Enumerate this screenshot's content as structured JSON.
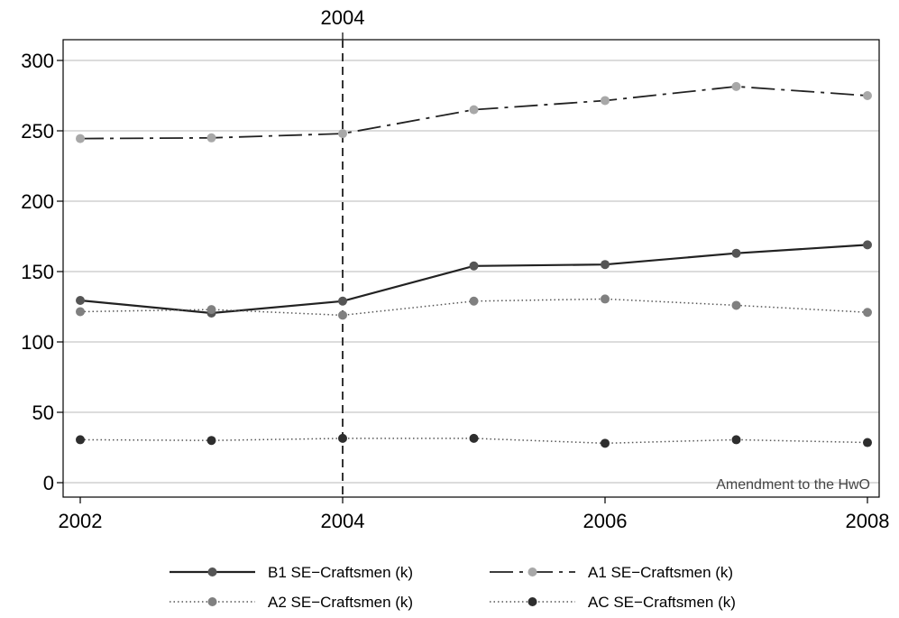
{
  "chart_data": {
    "type": "line",
    "x": [
      2002,
      2003,
      2004,
      2005,
      2006,
      2007,
      2008
    ],
    "xlim": [
      2002,
      2008
    ],
    "ylim": [
      0,
      300
    ],
    "xticks": [
      2002,
      2004,
      2006,
      2008
    ],
    "yticks": [
      0,
      50,
      100,
      150,
      200,
      250,
      300
    ],
    "grid": true,
    "legend_position": "bottom",
    "vline": {
      "x": 2004,
      "label": "2004"
    },
    "annotation": "Amendment to the HwO",
    "series": [
      {
        "name": "B1 SE−Craftsmen (k)",
        "values": [
          129.5,
          120.5,
          129,
          154,
          155,
          163,
          169
        ],
        "color": "#222222",
        "marker_color": "#555555",
        "dash": "solid"
      },
      {
        "name": "A1 SE−Craftsmen (k)",
        "values": [
          244.5,
          245,
          248,
          265,
          271.5,
          281.5,
          275
        ],
        "color": "#222222",
        "marker_color": "#a8a8a8",
        "dash": "longdashdot"
      },
      {
        "name": "A2 SE−Craftsmen (k)",
        "values": [
          121.5,
          123,
          119,
          129,
          130.5,
          126,
          121
        ],
        "color": "#555555",
        "marker_color": "#808080",
        "dash": "dotted"
      },
      {
        "name": "AC SE−Craftsmen (k)",
        "values": [
          30.5,
          30,
          31.5,
          31.5,
          28,
          30.5,
          28.5
        ],
        "color": "#555555",
        "marker_color": "#2e2e2e",
        "dash": "dotted"
      }
    ]
  }
}
